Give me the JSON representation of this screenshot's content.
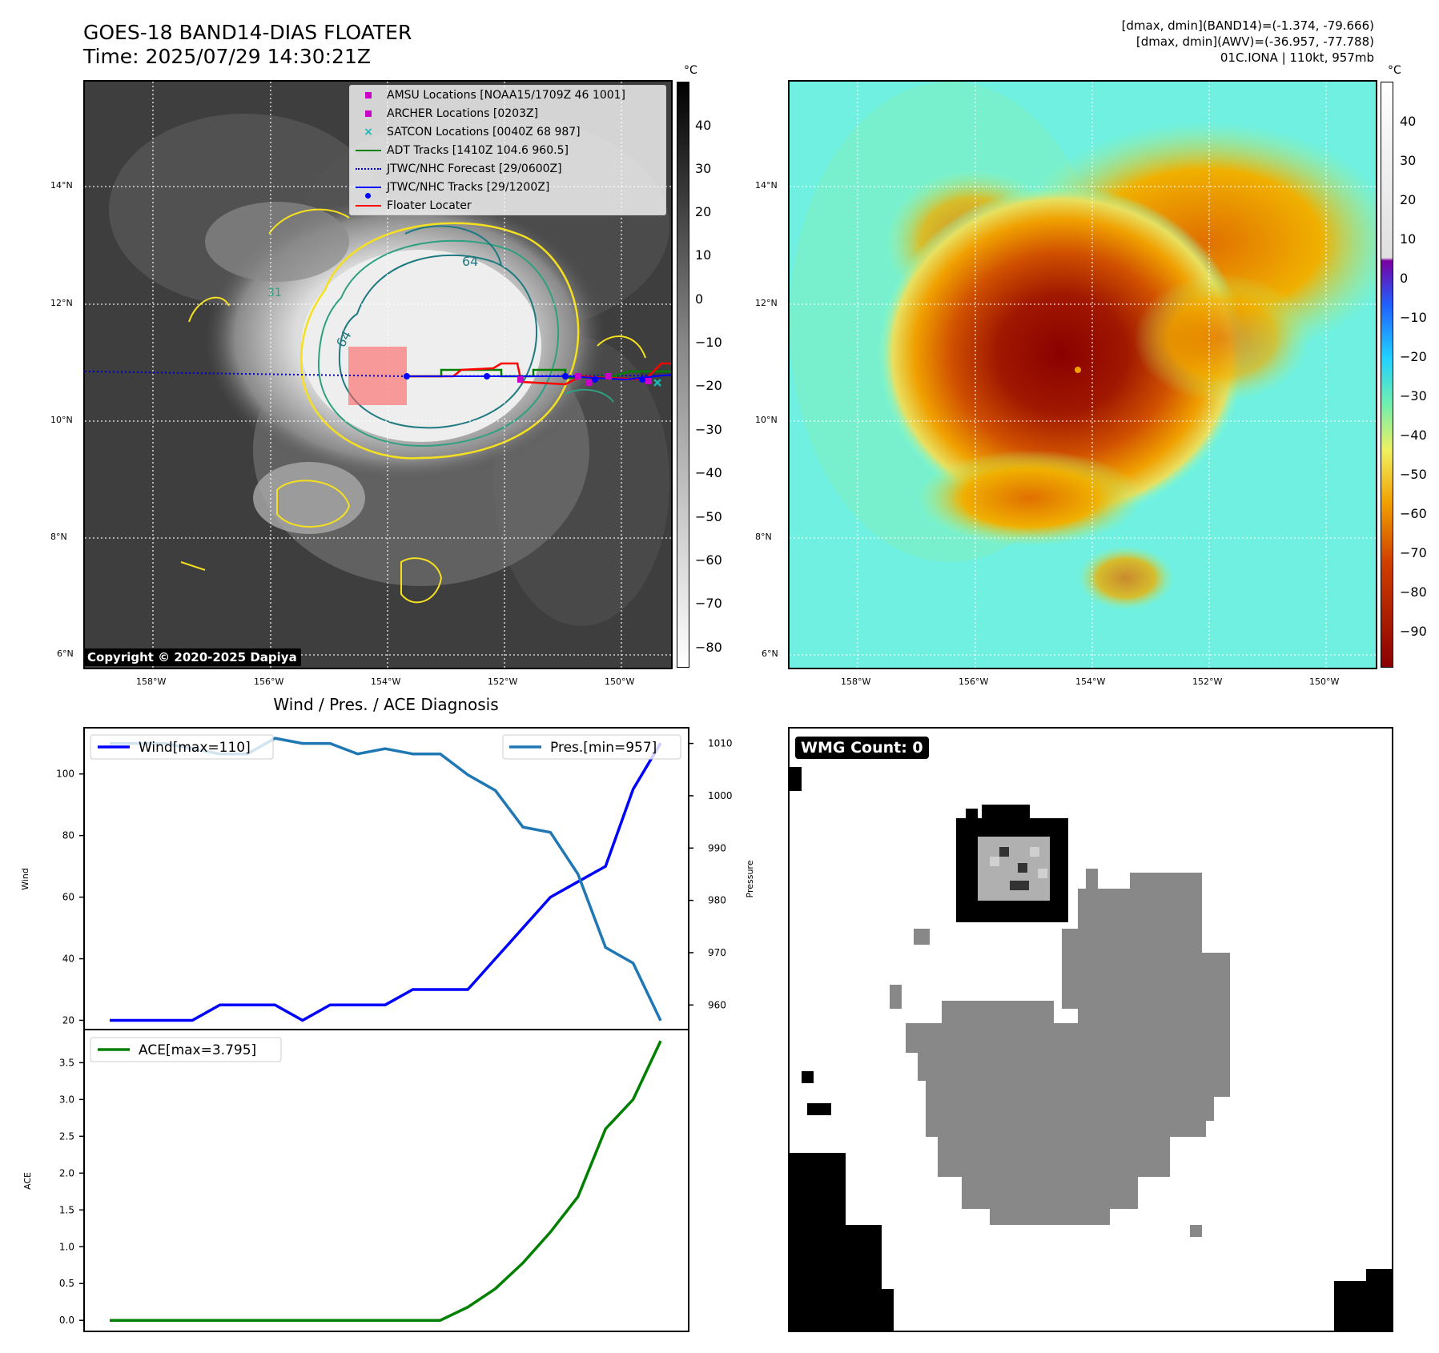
{
  "header": {
    "title_line1": "GOES-18 BAND14-DIAS FLOATER",
    "title_line2": "Time: 2025/07/29 14:30:21Z",
    "info_line1": "[dmax, dmin](BAND14)=(-1.374, -79.666)",
    "info_line2": "[dmax, dmin](AWV)=(-36.957, -77.788)",
    "info_line3": "01C.IONA | 110kt, 957mb"
  },
  "map": {
    "lat_ticks": [
      "14°N",
      "12°N",
      "10°N",
      "8°N",
      "6°N"
    ],
    "lon_ticks": [
      "158°W",
      "156°W",
      "154°W",
      "152°W",
      "150°W"
    ],
    "copyright": "Copyright © 2020-2025 Dapiya",
    "contour_labels": [
      "64",
      "64",
      "31"
    ],
    "colors": {
      "amsu": "#c800c8",
      "archer": "#c800c8",
      "satcon": "#1ab5b5",
      "adt": "#008000",
      "forecast": "#0000cc",
      "tracks": "#0000ff",
      "floater": "#ff0000"
    }
  },
  "legend": {
    "items": [
      {
        "symbol": "square",
        "label": "AMSU Locations [NOAA15/1709Z 46 1001]"
      },
      {
        "symbol": "square",
        "label": "ARCHER Locations [0203Z]"
      },
      {
        "symbol": "x",
        "label": "SATCON Locations [0040Z 68 987]"
      },
      {
        "symbol": "line-green",
        "label": "ADT Tracks [1410Z 104.6 960.5]"
      },
      {
        "symbol": "dotted-blue",
        "label": "JTWC/NHC Forecast [29/0600Z]"
      },
      {
        "symbol": "line-dot-blue",
        "label": "JTWC/NHC Tracks [29/1200Z]"
      },
      {
        "symbol": "line-red",
        "label": "Floater Locater"
      }
    ]
  },
  "colorbar_gray": {
    "unit": "°C",
    "ticks": [
      "40",
      "30",
      "20",
      "10",
      "0",
      "−10",
      "−20",
      "−30",
      "−40",
      "−50",
      "−60",
      "−70",
      "−80"
    ]
  },
  "colorbar_color": {
    "unit": "°C",
    "ticks": [
      "40",
      "30",
      "20",
      "10",
      "0",
      "−10",
      "−20",
      "−30",
      "−40",
      "−50",
      "−60",
      "−70",
      "−80",
      "−90"
    ]
  },
  "diagnosis": {
    "title": "Wind / Pres. / ACE Diagnosis",
    "wind_ylabel": "Wind",
    "pres_ylabel": "Pressure",
    "ace_ylabel": "ACE",
    "wind_legend": "Wind[max=110]",
    "pres_legend": "Pres.[min=957]",
    "ace_legend": "ACE[max=3.795]",
    "wind_ticks": [
      "100",
      "80",
      "60",
      "40",
      "20"
    ],
    "pres_ticks": [
      "1010",
      "1000",
      "990",
      "980",
      "970",
      "960"
    ],
    "ace_ticks": [
      "3.5",
      "3.0",
      "2.5",
      "2.0",
      "1.5",
      "1.0",
      "0.5",
      "0.0"
    ],
    "colors": {
      "wind": "#0000ff",
      "pres": "#1f77b4",
      "ace": "#008000"
    }
  },
  "wmg": {
    "badge": "WMG Count: 0"
  },
  "chart_data": [
    {
      "type": "line",
      "title": "Wind / Pres. / ACE Diagnosis",
      "x": [
        0,
        1,
        2,
        3,
        4,
        5,
        6,
        7,
        8,
        9,
        10,
        11,
        12,
        13,
        14,
        15,
        16,
        17,
        18,
        19,
        20
      ],
      "series": [
        {
          "name": "Wind[max=110]",
          "axis": "left",
          "ylabel": "Wind",
          "values": [
            20,
            20,
            20,
            20,
            25,
            25,
            25,
            20,
            25,
            25,
            25,
            30,
            30,
            30,
            40,
            50,
            60,
            65,
            70,
            95,
            110
          ]
        },
        {
          "name": "Pres.[min=957]",
          "axis": "right",
          "ylabel": "Pressure",
          "values": [
            1010,
            1010,
            1010,
            1009,
            1008,
            1008,
            1011,
            1010,
            1010,
            1008,
            1009,
            1008,
            1008,
            1004,
            1001,
            994,
            993,
            985,
            971,
            968,
            957
          ]
        }
      ],
      "ylim_left": [
        17,
        115
      ],
      "ylim_right": [
        955.3,
        1013
      ],
      "grid": false
    },
    {
      "type": "line",
      "x": [
        0,
        1,
        2,
        3,
        4,
        5,
        6,
        7,
        8,
        9,
        10,
        11,
        12,
        13,
        14,
        15,
        16,
        17,
        18,
        19,
        20
      ],
      "series": [
        {
          "name": "ACE[max=3.795]",
          "ylabel": "ACE",
          "values": [
            0,
            0,
            0,
            0,
            0,
            0,
            0,
            0,
            0,
            0,
            0,
            0,
            0,
            0.18,
            0.43,
            0.78,
            1.2,
            1.68,
            2.6,
            3.0,
            3.795
          ]
        }
      ],
      "ylim": [
        -0.15,
        3.95
      ],
      "grid": false
    }
  ]
}
